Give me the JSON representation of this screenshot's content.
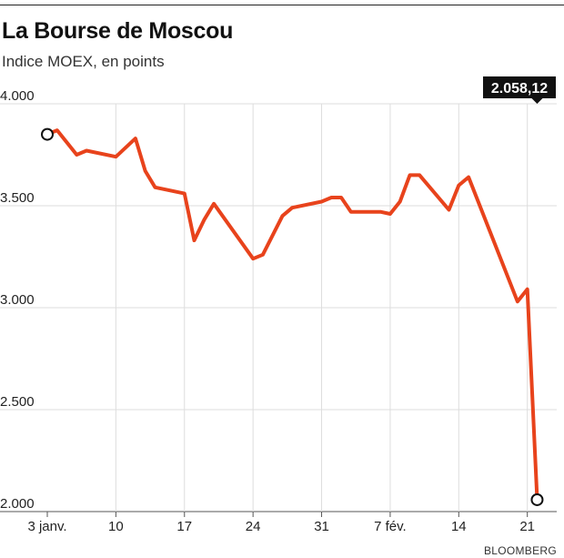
{
  "header": {
    "title": "La Bourse de Moscou",
    "subtitle": "Indice MOEX, en points"
  },
  "source": "BLOOMBERG",
  "callout": "2.058,12",
  "colors": {
    "line": "#e8431c",
    "grid": "#dddddd",
    "callout_bg": "#111111"
  },
  "chart_data": {
    "type": "line",
    "title": "La Bourse de Moscou",
    "subtitle": "Indice MOEX, en points",
    "xlabel": "",
    "ylabel": "",
    "ylim": [
      2000,
      4000
    ],
    "xlim": [
      0,
      52
    ],
    "grid": true,
    "yticks": [
      {
        "value": 4000,
        "label": "4.000"
      },
      {
        "value": 3500,
        "label": "3.500"
      },
      {
        "value": 3000,
        "label": "3.000"
      },
      {
        "value": 2500,
        "label": "2.500"
      },
      {
        "value": 2000,
        "label": "2.000"
      }
    ],
    "xticks": [
      {
        "value": 0,
        "label": "3 janv."
      },
      {
        "value": 7,
        "label": "10"
      },
      {
        "value": 14,
        "label": "17"
      },
      {
        "value": 21,
        "label": "24"
      },
      {
        "value": 28,
        "label": "31"
      },
      {
        "value": 35,
        "label": "7 fév."
      },
      {
        "value": 42,
        "label": "14"
      },
      {
        "value": 49,
        "label": "21"
      }
    ],
    "series": [
      {
        "x": [
          0,
          1,
          3,
          4,
          7,
          9,
          10,
          11,
          14,
          15,
          16,
          17,
          21,
          22,
          24,
          25,
          28,
          29,
          30,
          31,
          34,
          35,
          36,
          37,
          38,
          41,
          42,
          43,
          48,
          49,
          50
        ],
        "values": [
          3850,
          3870,
          3750,
          3770,
          3740,
          3830,
          3670,
          3590,
          3560,
          3330,
          3430,
          3510,
          3240,
          3260,
          3450,
          3490,
          3520,
          3540,
          3540,
          3470,
          3470,
          3460,
          3520,
          3650,
          3650,
          3480,
          3600,
          3640,
          3030,
          3090,
          2058.12
        ]
      }
    ],
    "markers": [
      {
        "x": 0,
        "y": 3850
      },
      {
        "x": 50,
        "y": 2058.12
      }
    ]
  }
}
